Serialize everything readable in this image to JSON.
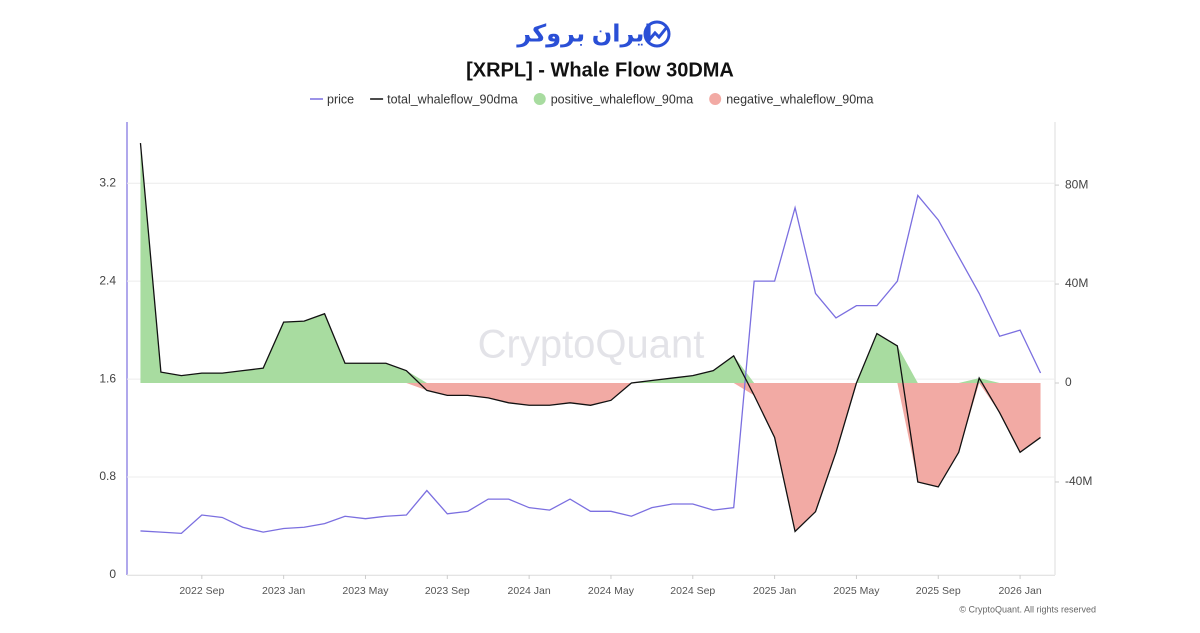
{
  "chart_data": {
    "type": "line",
    "brand": "ایران بروکر",
    "title": "[XRPL] - Whale Flow 30DMA",
    "watermark": "CryptoQuant",
    "credit": "© CryptoQuant. All rights reserved",
    "x": [
      "2022-06",
      "2022-07",
      "2022-08",
      "2022-09",
      "2022-10",
      "2022-11",
      "2022-12",
      "2023-01",
      "2023-02",
      "2023-03",
      "2023-04",
      "2023-05",
      "2023-06",
      "2023-07",
      "2023-08",
      "2023-09",
      "2023-10",
      "2023-11",
      "2023-12",
      "2024-01",
      "2024-02",
      "2024-03",
      "2024-04",
      "2024-05",
      "2024-06",
      "2024-07",
      "2024-08",
      "2024-09",
      "2024-10",
      "2024-11",
      "2024-12",
      "2025-01",
      "2025-02",
      "2025-03",
      "2025-04",
      "2025-05",
      "2025-06",
      "2025-07",
      "2025-08",
      "2025-09",
      "2025-10",
      "2025-11",
      "2025-12",
      "2026-01",
      "2026-02"
    ],
    "xlim": [
      "2022-05",
      "2026-03"
    ],
    "xticks": [
      {
        "value": "2022-09",
        "label": "2022 Sep"
      },
      {
        "value": "2023-01",
        "label": "2023 Jan"
      },
      {
        "value": "2023-05",
        "label": "2023 May"
      },
      {
        "value": "2023-09",
        "label": "2023 Sep"
      },
      {
        "value": "2024-01",
        "label": "2024 Jan"
      },
      {
        "value": "2024-05",
        "label": "2024 May"
      },
      {
        "value": "2024-09",
        "label": "2024 Sep"
      },
      {
        "value": "2025-01",
        "label": "2025 Jan"
      },
      {
        "value": "2025-05",
        "label": "2025 May"
      },
      {
        "value": "2025-09",
        "label": "2025 Sep"
      },
      {
        "value": "2026-01",
        "label": "2026 Jan"
      }
    ],
    "ylim": [
      0,
      3.7
    ],
    "yticks": [
      0,
      0.8,
      1.6,
      2.4,
      3.2
    ],
    "y2lim": [
      -77600000,
      105500000
    ],
    "y2ticks": [
      {
        "value": -40000000,
        "label": "-40M"
      },
      {
        "value": 0,
        "label": "0"
      },
      {
        "value": 40000000,
        "label": "40M"
      },
      {
        "value": 80000000,
        "label": "80M"
      }
    ],
    "grid": true,
    "legend": "top",
    "series": [
      {
        "name": "price",
        "color": "#7b6fe0",
        "style": "line",
        "axis": "y",
        "values": [
          0.36,
          0.35,
          0.34,
          0.49,
          0.47,
          0.39,
          0.35,
          0.38,
          0.39,
          0.42,
          0.48,
          0.46,
          0.48,
          0.49,
          0.69,
          0.5,
          0.52,
          0.62,
          0.62,
          0.55,
          0.53,
          0.62,
          0.52,
          0.52,
          0.48,
          0.55,
          0.58,
          0.58,
          0.53,
          0.55,
          2.4,
          2.4,
          3.0,
          2.3,
          2.1,
          2.2,
          2.2,
          2.4,
          3.1,
          2.9,
          2.6,
          2.3,
          1.95,
          2.0,
          1.65
        ]
      },
      {
        "name": "total_whaleflow_90dma",
        "color": "#111111",
        "style": "line",
        "axis": "y2",
        "values": [
          97000000,
          4400000,
          3000000,
          4000000,
          4000000,
          5000000,
          6000000,
          24600000,
          25000000,
          28000000,
          8000000,
          8000000,
          8000000,
          5000000,
          -3000000,
          -5000000,
          -5000000,
          -6000000,
          -8000000,
          -9000000,
          -9000000,
          -8000000,
          -9000000,
          -7000000,
          0,
          1000000,
          2000000,
          3000000,
          5000000,
          11000000,
          -5000000,
          -22000000,
          -60000000,
          -52000000,
          -28000000,
          0,
          20000000,
          15000000,
          -40000000,
          -42000000,
          -28000000,
          2000000,
          -12000000,
          -28000000,
          -22000000
        ]
      },
      {
        "name": "positive_whaleflow_90ma",
        "color": "#a8dca0",
        "style": "area",
        "axis": "y2",
        "values": [
          97000000,
          4400000,
          3000000,
          4000000,
          4000000,
          5000000,
          6000000,
          24600000,
          25000000,
          28000000,
          8000000,
          8000000,
          8000000,
          5000000,
          0,
          0,
          0,
          0,
          0,
          0,
          0,
          0,
          0,
          0,
          0,
          1000000,
          2000000,
          3000000,
          5000000,
          11000000,
          0,
          0,
          0,
          0,
          0,
          0,
          20000000,
          15000000,
          0,
          0,
          0,
          2000000,
          0,
          0,
          0
        ]
      },
      {
        "name": "negative_whaleflow_90ma",
        "color": "#f2aaa4",
        "style": "area",
        "axis": "y2",
        "values": [
          0,
          0,
          0,
          0,
          0,
          0,
          0,
          0,
          0,
          0,
          0,
          0,
          0,
          0,
          -3000000,
          -5000000,
          -5000000,
          -6000000,
          -8000000,
          -9000000,
          -9000000,
          -8000000,
          -9000000,
          -7000000,
          0,
          0,
          0,
          0,
          0,
          0,
          -5000000,
          -22000000,
          -60000000,
          -52000000,
          -28000000,
          0,
          0,
          0,
          -40000000,
          -42000000,
          -28000000,
          0,
          -12000000,
          -28000000,
          -22000000
        ]
      }
    ]
  }
}
